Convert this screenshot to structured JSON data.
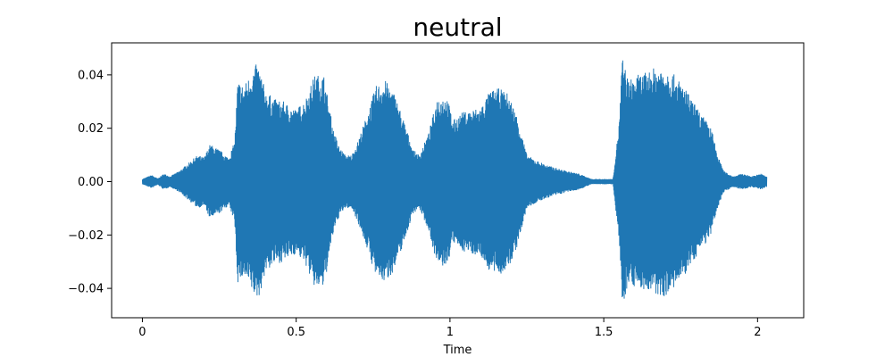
{
  "chart_data": {
    "type": "area",
    "title": "neutral",
    "xlabel": "Time",
    "ylabel": "",
    "xlim": [
      -0.1,
      2.15
    ],
    "ylim": [
      -0.051,
      0.052
    ],
    "x_ticks": [
      0,
      0.5,
      1,
      1.5,
      2
    ],
    "x_tick_labels": [
      "0",
      "0.5",
      "1",
      "1.5",
      "2"
    ],
    "y_ticks": [
      -0.04,
      -0.02,
      0.0,
      0.02,
      0.04
    ],
    "y_tick_labels": [
      "−0.04",
      "−0.02",
      "0.00",
      "0.02",
      "0.04"
    ],
    "grid": false,
    "series_color": "#1f77b4",
    "envelope": {
      "time": [
        0.0,
        0.03,
        0.05,
        0.07,
        0.09,
        0.12,
        0.15,
        0.18,
        0.2,
        0.22,
        0.25,
        0.28,
        0.3,
        0.31,
        0.33,
        0.35,
        0.37,
        0.38,
        0.4,
        0.43,
        0.46,
        0.5,
        0.53,
        0.56,
        0.59,
        0.62,
        0.64,
        0.66,
        0.68,
        0.7,
        0.73,
        0.76,
        0.79,
        0.82,
        0.85,
        0.88,
        0.9,
        0.93,
        0.96,
        0.99,
        1.01,
        1.04,
        1.07,
        1.1,
        1.13,
        1.16,
        1.19,
        1.22,
        1.25,
        1.28,
        1.3,
        1.32,
        1.35,
        1.38,
        1.42,
        1.46,
        1.5,
        1.53,
        1.55,
        1.56,
        1.58,
        1.61,
        1.64,
        1.67,
        1.7,
        1.73,
        1.76,
        1.79,
        1.82,
        1.85,
        1.87,
        1.89,
        1.92,
        1.95,
        1.98,
        2.01,
        2.03
      ],
      "amplitude": [
        0.001,
        0.0025,
        0.0012,
        0.003,
        0.002,
        0.004,
        0.007,
        0.01,
        0.009,
        0.014,
        0.012,
        0.009,
        0.015,
        0.038,
        0.036,
        0.04,
        0.044,
        0.043,
        0.034,
        0.031,
        0.03,
        0.027,
        0.031,
        0.04,
        0.04,
        0.02,
        0.013,
        0.01,
        0.01,
        0.015,
        0.025,
        0.036,
        0.038,
        0.033,
        0.023,
        0.012,
        0.01,
        0.018,
        0.032,
        0.032,
        0.023,
        0.026,
        0.027,
        0.028,
        0.034,
        0.035,
        0.033,
        0.024,
        0.01,
        0.008,
        0.007,
        0.006,
        0.005,
        0.004,
        0.003,
        0.001,
        0.001,
        0.001,
        0.022,
        0.047,
        0.038,
        0.04,
        0.041,
        0.043,
        0.043,
        0.04,
        0.036,
        0.03,
        0.025,
        0.02,
        0.01,
        0.004,
        0.002,
        0.003,
        0.002,
        0.003,
        0.002
      ]
    }
  }
}
